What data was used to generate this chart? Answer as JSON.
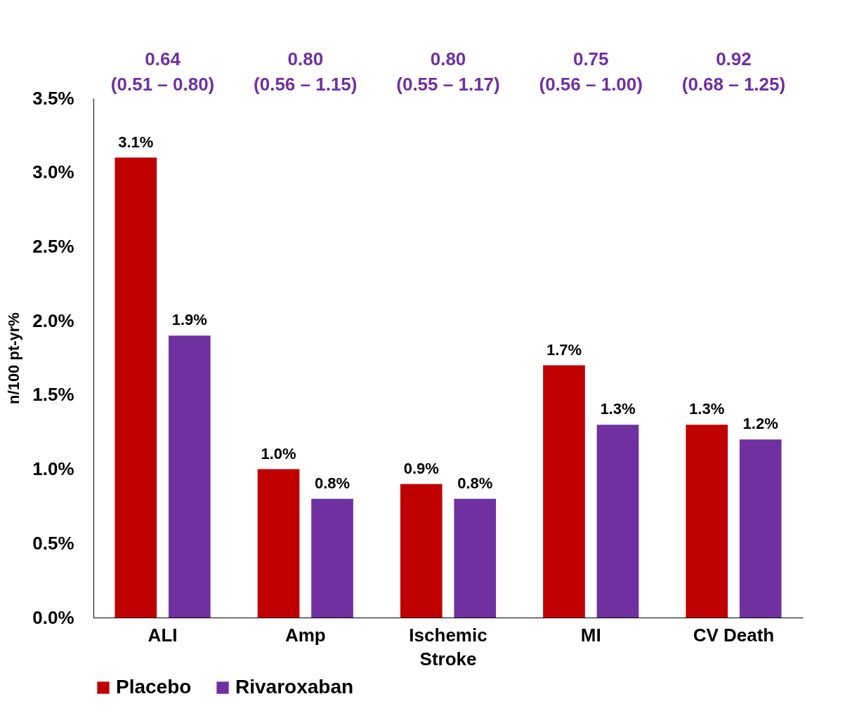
{
  "chart_data": {
    "type": "bar",
    "ylabel": "n/100 pt-yr%",
    "categories": [
      "ALI",
      "Amp",
      "Ischemic Stroke",
      "MI",
      "CV Death"
    ],
    "series": [
      {
        "name": "Placebo",
        "color": "#c00000",
        "values": [
          3.1,
          1.0,
          0.9,
          1.7,
          1.3
        ],
        "value_labels": [
          "3.1%",
          "1.0%",
          "0.9%",
          "1.7%",
          "1.3%"
        ]
      },
      {
        "name": "Rivaroxaban",
        "color": "#7030a0",
        "values": [
          1.9,
          0.8,
          0.8,
          1.3,
          1.2
        ],
        "value_labels": [
          "1.9%",
          "0.8%",
          "0.8%",
          "1.3%",
          "1.2%"
        ]
      }
    ],
    "ylim": [
      0,
      3.5
    ],
    "yticks": [
      {
        "value": 0,
        "label": "0.0%"
      },
      {
        "value": 0.5,
        "label": "0.5%"
      },
      {
        "value": 1,
        "label": "1.0%"
      },
      {
        "value": 1.5,
        "label": "1.5%"
      },
      {
        "value": 2,
        "label": "2.0%"
      },
      {
        "value": 2.5,
        "label": "2.5%"
      },
      {
        "value": 3,
        "label": "3.0%"
      },
      {
        "value": 3.5,
        "label": "3.5%"
      }
    ],
    "annotations": [
      "0.64\n(0.51 – 0.80)",
      "0.80\n(0.56 – 1.15)",
      "0.80\n(0.55 – 1.17)",
      "0.75\n(0.56 – 1.00)",
      "0.92\n(0.68 – 1.25)"
    ],
    "grid": false,
    "legend": "bottom"
  }
}
